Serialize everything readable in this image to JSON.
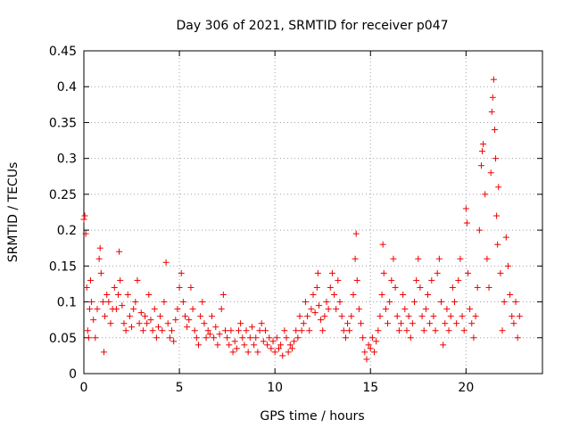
{
  "chart_data": {
    "type": "scatter",
    "title": "Day 306 of 2021, SRMTID for receiver p047",
    "xlabel": "GPS time / hours",
    "ylabel": "SRMTID / TECUs",
    "xlim": [
      0,
      24
    ],
    "ylim": [
      0,
      0.45
    ],
    "x_ticks": [
      0,
      5,
      10,
      15,
      20
    ],
    "x_tick_labels": [
      "0",
      "5",
      "10",
      "15",
      "20"
    ],
    "y_ticks": [
      0,
      0.05,
      0.1,
      0.15,
      0.2,
      0.25,
      0.3,
      0.35,
      0.4,
      0.45
    ],
    "y_tick_labels": [
      "0",
      "0.05",
      "0.1",
      "0.15",
      "0.2",
      "0.25",
      "0.3",
      "0.35",
      "0.4",
      "0.45"
    ],
    "grid": true,
    "marker": "plus",
    "series": [
      {
        "name": "SRMTID",
        "color": "#ee0000",
        "points": [
          [
            0.0,
            0.215
          ],
          [
            0.05,
            0.22
          ],
          [
            0.1,
            0.195
          ],
          [
            0.15,
            0.12
          ],
          [
            0.2,
            0.06
          ],
          [
            0.25,
            0.05
          ],
          [
            0.3,
            0.09
          ],
          [
            0.35,
            0.13
          ],
          [
            0.4,
            0.1
          ],
          [
            0.5,
            0.075
          ],
          [
            0.6,
            0.05
          ],
          [
            0.7,
            0.09
          ],
          [
            0.8,
            0.16
          ],
          [
            0.85,
            0.175
          ],
          [
            0.9,
            0.14
          ],
          [
            1.0,
            0.1
          ],
          [
            1.05,
            0.03
          ],
          [
            1.1,
            0.08
          ],
          [
            1.2,
            0.11
          ],
          [
            1.3,
            0.1
          ],
          [
            1.4,
            0.07
          ],
          [
            1.5,
            0.09
          ],
          [
            1.6,
            0.12
          ],
          [
            1.7,
            0.09
          ],
          [
            1.8,
            0.11
          ],
          [
            1.85,
            0.17
          ],
          [
            1.9,
            0.13
          ],
          [
            2.0,
            0.095
          ],
          [
            2.1,
            0.07
          ],
          [
            2.2,
            0.06
          ],
          [
            2.3,
            0.11
          ],
          [
            2.4,
            0.08
          ],
          [
            2.5,
            0.065
          ],
          [
            2.6,
            0.09
          ],
          [
            2.7,
            0.1
          ],
          [
            2.8,
            0.13
          ],
          [
            2.9,
            0.07
          ],
          [
            3.0,
            0.085
          ],
          [
            3.1,
            0.06
          ],
          [
            3.2,
            0.08
          ],
          [
            3.3,
            0.07
          ],
          [
            3.4,
            0.11
          ],
          [
            3.5,
            0.075
          ],
          [
            3.6,
            0.06
          ],
          [
            3.7,
            0.09
          ],
          [
            3.8,
            0.05
          ],
          [
            3.9,
            0.065
          ],
          [
            4.0,
            0.08
          ],
          [
            4.1,
            0.06
          ],
          [
            4.2,
            0.1
          ],
          [
            4.3,
            0.155
          ],
          [
            4.4,
            0.07
          ],
          [
            4.5,
            0.05
          ],
          [
            4.6,
            0.06
          ],
          [
            4.7,
            0.045
          ],
          [
            4.8,
            0.075
          ],
          [
            4.9,
            0.09
          ],
          [
            5.0,
            0.12
          ],
          [
            5.1,
            0.14
          ],
          [
            5.2,
            0.1
          ],
          [
            5.3,
            0.08
          ],
          [
            5.4,
            0.065
          ],
          [
            5.5,
            0.075
          ],
          [
            5.6,
            0.12
          ],
          [
            5.7,
            0.09
          ],
          [
            5.8,
            0.06
          ],
          [
            5.9,
            0.05
          ],
          [
            6.0,
            0.04
          ],
          [
            6.1,
            0.08
          ],
          [
            6.2,
            0.1
          ],
          [
            6.3,
            0.07
          ],
          [
            6.4,
            0.05
          ],
          [
            6.5,
            0.06
          ],
          [
            6.6,
            0.055
          ],
          [
            6.7,
            0.08
          ],
          [
            6.8,
            0.05
          ],
          [
            6.9,
            0.065
          ],
          [
            7.0,
            0.04
          ],
          [
            7.1,
            0.055
          ],
          [
            7.2,
            0.09
          ],
          [
            7.3,
            0.11
          ],
          [
            7.4,
            0.06
          ],
          [
            7.5,
            0.05
          ],
          [
            7.6,
            0.04
          ],
          [
            7.7,
            0.06
          ],
          [
            7.8,
            0.03
          ],
          [
            7.9,
            0.045
          ],
          [
            8.0,
            0.035
          ],
          [
            8.1,
            0.06
          ],
          [
            8.2,
            0.07
          ],
          [
            8.3,
            0.05
          ],
          [
            8.4,
            0.04
          ],
          [
            8.5,
            0.06
          ],
          [
            8.6,
            0.03
          ],
          [
            8.7,
            0.05
          ],
          [
            8.8,
            0.065
          ],
          [
            8.9,
            0.04
          ],
          [
            9.0,
            0.05
          ],
          [
            9.1,
            0.03
          ],
          [
            9.2,
            0.06
          ],
          [
            9.3,
            0.07
          ],
          [
            9.4,
            0.045
          ],
          [
            9.5,
            0.06
          ],
          [
            9.6,
            0.04
          ],
          [
            9.7,
            0.05
          ],
          [
            9.8,
            0.035
          ],
          [
            9.9,
            0.045
          ],
          [
            10.0,
            0.03
          ],
          [
            10.1,
            0.05
          ],
          [
            10.2,
            0.035
          ],
          [
            10.3,
            0.04
          ],
          [
            10.4,
            0.025
          ],
          [
            10.5,
            0.06
          ],
          [
            10.6,
            0.05
          ],
          [
            10.7,
            0.03
          ],
          [
            10.8,
            0.04
          ],
          [
            10.9,
            0.035
          ],
          [
            11.0,
            0.045
          ],
          [
            11.1,
            0.06
          ],
          [
            11.2,
            0.05
          ],
          [
            11.3,
            0.08
          ],
          [
            11.4,
            0.06
          ],
          [
            11.5,
            0.07
          ],
          [
            11.6,
            0.1
          ],
          [
            11.7,
            0.08
          ],
          [
            11.8,
            0.06
          ],
          [
            11.9,
            0.09
          ],
          [
            12.0,
            0.11
          ],
          [
            12.1,
            0.085
          ],
          [
            12.2,
            0.12
          ],
          [
            12.25,
            0.14
          ],
          [
            12.3,
            0.095
          ],
          [
            12.4,
            0.075
          ],
          [
            12.5,
            0.06
          ],
          [
            12.6,
            0.08
          ],
          [
            12.7,
            0.1
          ],
          [
            12.8,
            0.09
          ],
          [
            12.9,
            0.12
          ],
          [
            13.0,
            0.14
          ],
          [
            13.1,
            0.11
          ],
          [
            13.2,
            0.09
          ],
          [
            13.3,
            0.13
          ],
          [
            13.4,
            0.1
          ],
          [
            13.5,
            0.08
          ],
          [
            13.6,
            0.06
          ],
          [
            13.7,
            0.05
          ],
          [
            13.8,
            0.07
          ],
          [
            13.9,
            0.06
          ],
          [
            14.0,
            0.08
          ],
          [
            14.1,
            0.11
          ],
          [
            14.2,
            0.16
          ],
          [
            14.25,
            0.195
          ],
          [
            14.3,
            0.13
          ],
          [
            14.4,
            0.09
          ],
          [
            14.5,
            0.07
          ],
          [
            14.6,
            0.05
          ],
          [
            14.7,
            0.03
          ],
          [
            14.8,
            0.02
          ],
          [
            14.9,
            0.04
          ],
          [
            15.0,
            0.035
          ],
          [
            15.1,
            0.05
          ],
          [
            15.2,
            0.03
          ],
          [
            15.3,
            0.045
          ],
          [
            15.4,
            0.06
          ],
          [
            15.5,
            0.08
          ],
          [
            15.6,
            0.11
          ],
          [
            15.65,
            0.18
          ],
          [
            15.7,
            0.14
          ],
          [
            15.8,
            0.09
          ],
          [
            15.9,
            0.07
          ],
          [
            16.0,
            0.1
          ],
          [
            16.1,
            0.13
          ],
          [
            16.2,
            0.16
          ],
          [
            16.3,
            0.12
          ],
          [
            16.4,
            0.08
          ],
          [
            16.5,
            0.06
          ],
          [
            16.6,
            0.07
          ],
          [
            16.7,
            0.11
          ],
          [
            16.8,
            0.09
          ],
          [
            16.9,
            0.06
          ],
          [
            17.0,
            0.08
          ],
          [
            17.1,
            0.05
          ],
          [
            17.2,
            0.07
          ],
          [
            17.3,
            0.1
          ],
          [
            17.4,
            0.13
          ],
          [
            17.5,
            0.16
          ],
          [
            17.6,
            0.12
          ],
          [
            17.7,
            0.08
          ],
          [
            17.8,
            0.06
          ],
          [
            17.9,
            0.09
          ],
          [
            18.0,
            0.11
          ],
          [
            18.1,
            0.07
          ],
          [
            18.2,
            0.13
          ],
          [
            18.3,
            0.08
          ],
          [
            18.4,
            0.06
          ],
          [
            18.5,
            0.14
          ],
          [
            18.6,
            0.16
          ],
          [
            18.7,
            0.1
          ],
          [
            18.8,
            0.04
          ],
          [
            18.9,
            0.07
          ],
          [
            19.0,
            0.09
          ],
          [
            19.1,
            0.06
          ],
          [
            19.2,
            0.08
          ],
          [
            19.3,
            0.12
          ],
          [
            19.4,
            0.1
          ],
          [
            19.5,
            0.07
          ],
          [
            19.6,
            0.13
          ],
          [
            19.7,
            0.16
          ],
          [
            19.8,
            0.08
          ],
          [
            19.9,
            0.06
          ],
          [
            20.0,
            0.23
          ],
          [
            20.05,
            0.21
          ],
          [
            20.1,
            0.14
          ],
          [
            20.2,
            0.09
          ],
          [
            20.3,
            0.07
          ],
          [
            20.4,
            0.05
          ],
          [
            20.5,
            0.08
          ],
          [
            20.6,
            0.12
          ],
          [
            20.7,
            0.2
          ],
          [
            20.8,
            0.29
          ],
          [
            20.85,
            0.31
          ],
          [
            20.9,
            0.32
          ],
          [
            21.0,
            0.25
          ],
          [
            21.1,
            0.16
          ],
          [
            21.2,
            0.12
          ],
          [
            21.3,
            0.28
          ],
          [
            21.35,
            0.365
          ],
          [
            21.4,
            0.385
          ],
          [
            21.45,
            0.41
          ],
          [
            21.5,
            0.34
          ],
          [
            21.55,
            0.3
          ],
          [
            21.6,
            0.22
          ],
          [
            21.65,
            0.18
          ],
          [
            21.7,
            0.26
          ],
          [
            21.8,
            0.14
          ],
          [
            21.9,
            0.06
          ],
          [
            22.0,
            0.1
          ],
          [
            22.1,
            0.19
          ],
          [
            22.2,
            0.15
          ],
          [
            22.3,
            0.11
          ],
          [
            22.4,
            0.08
          ],
          [
            22.5,
            0.07
          ],
          [
            22.6,
            0.1
          ],
          [
            22.7,
            0.05
          ],
          [
            22.8,
            0.08
          ]
        ]
      }
    ]
  }
}
